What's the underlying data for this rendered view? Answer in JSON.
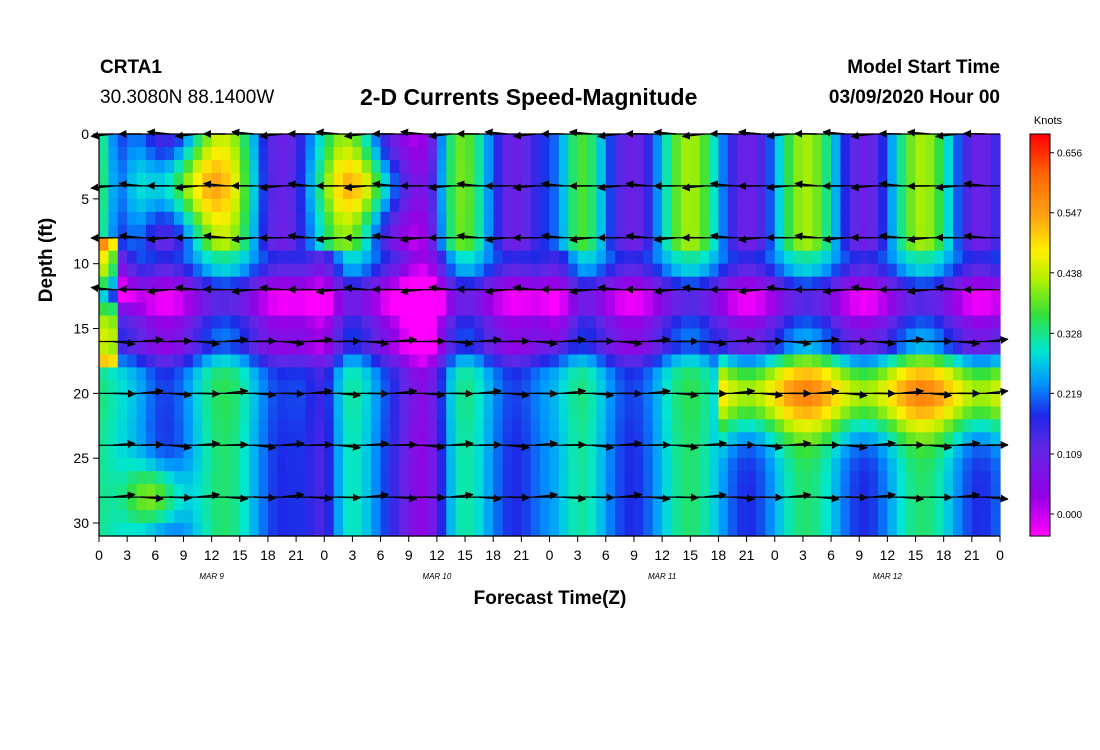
{
  "header": {
    "station": "CRTA1",
    "coordinates": "30.3080N 88.1400W",
    "title": "2-D Currents Speed-Magnitude",
    "model_start_label": "Model Start Time",
    "model_start_value": "03/09/2020 Hour 00"
  },
  "chart_data": {
    "type": "heatmap",
    "title": "2-D Currents Speed-Magnitude",
    "xlabel": "Forecast Time(Z)",
    "ylabel": "Depth (ft)",
    "x_range_hours": [
      0,
      96
    ],
    "y_range_ft": [
      0,
      31
    ],
    "y_inverted": true,
    "x_tick_labels": [
      "0",
      "3",
      "6",
      "9",
      "12",
      "15",
      "18",
      "21",
      "0",
      "3",
      "6",
      "9",
      "12",
      "15",
      "18",
      "21",
      "0",
      "3",
      "6",
      "9",
      "12",
      "15",
      "18",
      "21",
      "0",
      "3",
      "6",
      "9",
      "12",
      "15",
      "18",
      "21",
      "0"
    ],
    "y_ticks": [
      0,
      5,
      10,
      15,
      20,
      25,
      30
    ],
    "day_labels": [
      {
        "label": "MAR 9",
        "hour": 12
      },
      {
        "label": "MAR 10",
        "hour": 36
      },
      {
        "label": "MAR 11",
        "hour": 60
      },
      {
        "label": "MAR 12",
        "hour": 84
      }
    ],
    "colorbar": {
      "units": "Knots",
      "range": [
        -0.04,
        0.69
      ],
      "tick_values": [
        0.0,
        0.109,
        0.219,
        0.328,
        0.438,
        0.547,
        0.656
      ],
      "tick_labels": [
        "0.000",
        "0.109",
        "0.219",
        "0.328",
        "0.438",
        "0.547",
        "0.656"
      ]
    },
    "vector_depths_ft": [
      0,
      4,
      8,
      12,
      16,
      20,
      24,
      28
    ]
  }
}
